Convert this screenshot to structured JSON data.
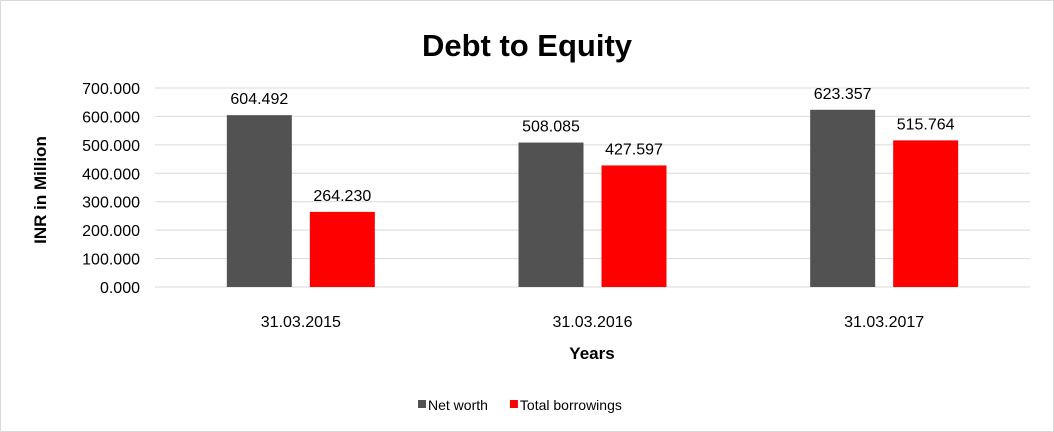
{
  "chart_data": {
    "type": "bar",
    "title": "Debt to Equity",
    "xlabel": "Years",
    "ylabel": "INR in Million",
    "categories": [
      "31.03.2015",
      "31.03.2016",
      "31.03.2017"
    ],
    "series": [
      {
        "name": "Net worth",
        "color": "#525252",
        "values": [
          604.492,
          508.085,
          623.357
        ],
        "labels": [
          "604.492",
          "508.085",
          "623.357"
        ]
      },
      {
        "name": "Total borrowings",
        "color": "#ff0000",
        "values": [
          264.23,
          427.597,
          515.764
        ],
        "labels": [
          "264.230",
          "427.597",
          "515.764"
        ]
      }
    ],
    "ylim": [
      0,
      700
    ],
    "yticks": [
      "0.000",
      "100.000",
      "200.000",
      "300.000",
      "400.000",
      "500.000",
      "600.000",
      "700.000"
    ],
    "grid": true,
    "legend": "bottom"
  }
}
